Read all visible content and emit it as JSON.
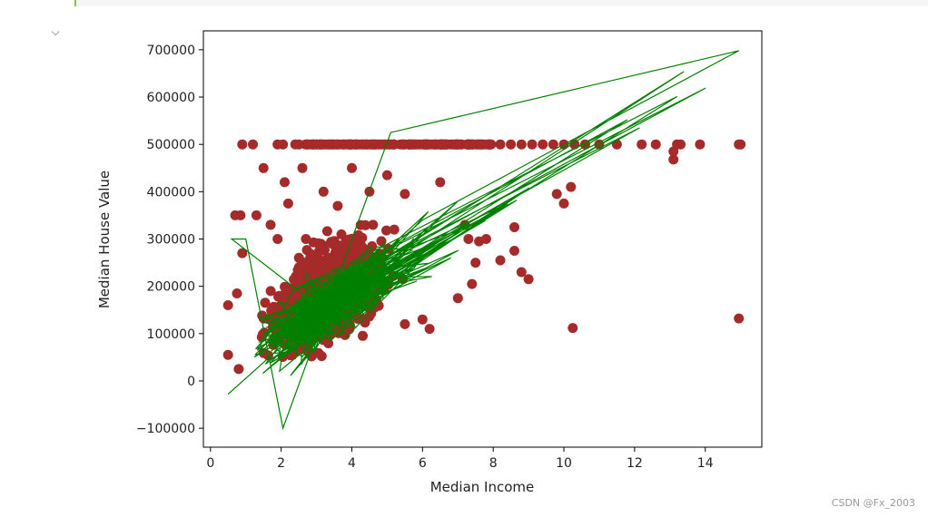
{
  "notebook": {
    "collapse_icon": "chevron-down-icon",
    "collapse_glyph": "⌵"
  },
  "watermark": "CSDN @Fx_2003",
  "chart_data": {
    "type": "scatter",
    "xlabel": "Median Income",
    "ylabel": "Median House Value",
    "xlim": [
      -0.2,
      15.6
    ],
    "ylim": [
      -140000,
      740000
    ],
    "xticks": [
      0,
      2,
      4,
      6,
      8,
      10,
      12,
      14
    ],
    "yticks": [
      -100000,
      0,
      100000,
      200000,
      300000,
      400000,
      500000,
      600000,
      700000
    ],
    "grid": false,
    "legend": "none",
    "colors": {
      "points": "#a52a2a",
      "line": "#008000"
    },
    "series": [
      {
        "kind": "scatter",
        "color": "#a52a2a",
        "cap_value": 500001,
        "cap_x": [
          0.9,
          1.2,
          1.9,
          2.05,
          2.4,
          2.5,
          2.9,
          3.1,
          3.4,
          3.6,
          3.8,
          4.1,
          4.3,
          4.6,
          4.9,
          5.2,
          5.5,
          5.8,
          6.1,
          6.4,
          6.7,
          7.0,
          7.3,
          7.6,
          7.9,
          8.2,
          8.5,
          8.8,
          9.1,
          9.4,
          9.7,
          10.0,
          10.3,
          10.6,
          11.0,
          11.5,
          12.2,
          12.6,
          13.3,
          13.85,
          14.95,
          15.0
        ],
        "outliers": [
          [
            0.5,
            160000
          ],
          [
            0.5,
            55000
          ],
          [
            0.7,
            350000
          ],
          [
            0.85,
            350000
          ],
          [
            0.75,
            185000
          ],
          [
            0.9,
            270000
          ],
          [
            0.8,
            25000
          ],
          [
            1.3,
            350000
          ],
          [
            1.5,
            450000
          ],
          [
            1.7,
            330000
          ],
          [
            1.9,
            300000
          ],
          [
            2.1,
            420000
          ],
          [
            2.2,
            375000
          ],
          [
            2.6,
            450000
          ],
          [
            2.7,
            300000
          ],
          [
            3.2,
            400000
          ],
          [
            3.6,
            370000
          ],
          [
            4.0,
            450000
          ],
          [
            4.5,
            400000
          ],
          [
            5.0,
            435000
          ],
          [
            5.5,
            395000
          ],
          [
            5.2,
            320000
          ],
          [
            4.6,
            330000
          ],
          [
            6.5,
            420000
          ],
          [
            7.2,
            330000
          ],
          [
            7.3,
            300000
          ],
          [
            7.6,
            295000
          ],
          [
            7.5,
            250000
          ],
          [
            7.8,
            300000
          ],
          [
            8.2,
            255000
          ],
          [
            8.6,
            325000
          ],
          [
            8.6,
            275000
          ],
          [
            8.8,
            230000
          ],
          [
            9.0,
            215000
          ],
          [
            7.0,
            175000
          ],
          [
            7.4,
            205000
          ],
          [
            6.2,
            110000
          ],
          [
            9.8,
            395000
          ],
          [
            10.0,
            375000
          ],
          [
            10.2,
            410000
          ],
          [
            10.25,
            112000
          ],
          [
            13.1,
            485000
          ],
          [
            13.1,
            468000
          ],
          [
            13.2,
            500001
          ],
          [
            14.95,
            132000
          ],
          [
            6.0,
            130000
          ],
          [
            5.5,
            120000
          ]
        ]
      },
      {
        "kind": "line",
        "color": "#008000",
        "description": "fitted predictions"
      }
    ]
  }
}
